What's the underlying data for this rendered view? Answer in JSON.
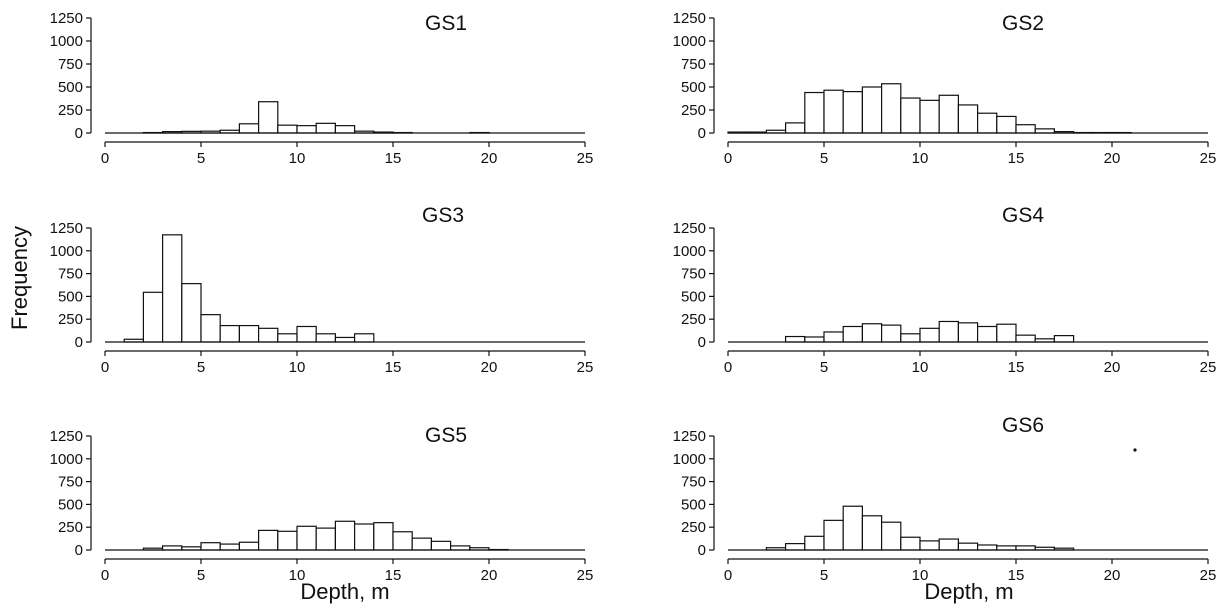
{
  "figure": {
    "ylabel": "Frequency",
    "xlabel": "Depth, m"
  },
  "chart_data": [
    {
      "type": "bar",
      "title": "GS1",
      "xlabel": "",
      "ylabel": "",
      "xlim": [
        0,
        25
      ],
      "ylim": [
        0,
        1250
      ],
      "xticks": [
        0,
        5,
        10,
        15,
        20,
        25
      ],
      "yticks": [
        0,
        250,
        500,
        750,
        1000,
        1250
      ],
      "bin_width": 1,
      "bin_starts": [
        0,
        1,
        2,
        3,
        4,
        5,
        6,
        7,
        8,
        9,
        10,
        11,
        12,
        13,
        14,
        15,
        16,
        17,
        18,
        19,
        20,
        21,
        22,
        23,
        24
      ],
      "values": [
        0,
        0,
        5,
        15,
        18,
        20,
        30,
        100,
        340,
        85,
        80,
        105,
        80,
        20,
        10,
        5,
        0,
        0,
        0,
        5,
        0,
        0,
        0,
        0,
        0
      ]
    },
    {
      "type": "bar",
      "title": "GS2",
      "xlabel": "",
      "ylabel": "",
      "xlim": [
        0,
        25
      ],
      "ylim": [
        0,
        1250
      ],
      "xticks": [
        0,
        5,
        10,
        15,
        20,
        25
      ],
      "yticks": [
        0,
        250,
        500,
        750,
        1000,
        1250
      ],
      "bin_width": 1,
      "bin_starts": [
        0,
        1,
        2,
        3,
        4,
        5,
        6,
        7,
        8,
        9,
        10,
        11,
        12,
        13,
        14,
        15,
        16,
        17,
        18,
        19,
        20,
        21,
        22,
        23,
        24
      ],
      "values": [
        10,
        10,
        30,
        110,
        440,
        465,
        450,
        500,
        535,
        380,
        355,
        410,
        305,
        215,
        180,
        90,
        45,
        15,
        5,
        5,
        5,
        0,
        0,
        0,
        0
      ]
    },
    {
      "type": "bar",
      "title": "GS3",
      "xlabel": "",
      "ylabel": "",
      "xlim": [
        0,
        25
      ],
      "ylim": [
        0,
        1250
      ],
      "xticks": [
        0,
        5,
        10,
        15,
        20,
        25
      ],
      "yticks": [
        0,
        250,
        500,
        750,
        1000,
        1250
      ],
      "bin_width": 1,
      "bin_starts": [
        0,
        1,
        2,
        3,
        4,
        5,
        6,
        7,
        8,
        9,
        10,
        11,
        12,
        13,
        14,
        15,
        16,
        17,
        18,
        19,
        20,
        21,
        22,
        23,
        24
      ],
      "values": [
        0,
        30,
        545,
        1175,
        640,
        300,
        180,
        180,
        150,
        90,
        170,
        90,
        50,
        90,
        0,
        0,
        0,
        0,
        0,
        0,
        0,
        0,
        0,
        0,
        0
      ]
    },
    {
      "type": "bar",
      "title": "GS4",
      "xlabel": "",
      "ylabel": "",
      "xlim": [
        0,
        25
      ],
      "ylim": [
        0,
        1250
      ],
      "xticks": [
        0,
        5,
        10,
        15,
        20,
        25
      ],
      "yticks": [
        0,
        250,
        500,
        750,
        1000,
        1250
      ],
      "bin_width": 1,
      "bin_starts": [
        0,
        1,
        2,
        3,
        4,
        5,
        6,
        7,
        8,
        9,
        10,
        11,
        12,
        13,
        14,
        15,
        16,
        17,
        18,
        19,
        20,
        21,
        22,
        23,
        24
      ],
      "values": [
        0,
        0,
        0,
        60,
        55,
        110,
        170,
        200,
        185,
        90,
        150,
        225,
        210,
        170,
        195,
        75,
        35,
        70,
        0,
        0,
        0,
        0,
        0,
        0,
        0
      ]
    },
    {
      "type": "bar",
      "title": "GS5",
      "xlabel": "",
      "ylabel": "",
      "xlim": [
        0,
        25
      ],
      "ylim": [
        0,
        1250
      ],
      "xticks": [
        0,
        5,
        10,
        15,
        20,
        25
      ],
      "yticks": [
        0,
        250,
        500,
        750,
        1000,
        1250
      ],
      "bin_width": 1,
      "bin_starts": [
        0,
        1,
        2,
        3,
        4,
        5,
        6,
        7,
        8,
        9,
        10,
        11,
        12,
        13,
        14,
        15,
        16,
        17,
        18,
        19,
        20,
        21,
        22,
        23,
        24
      ],
      "values": [
        0,
        0,
        20,
        45,
        35,
        80,
        65,
        85,
        215,
        205,
        260,
        240,
        315,
        285,
        300,
        200,
        130,
        95,
        45,
        25,
        5,
        0,
        0,
        0,
        0
      ]
    },
    {
      "type": "bar",
      "title": "GS6",
      "xlabel": "",
      "ylabel": "",
      "xlim": [
        0,
        25
      ],
      "ylim": [
        0,
        1250
      ],
      "xticks": [
        0,
        5,
        10,
        15,
        20,
        25
      ],
      "yticks": [
        0,
        250,
        500,
        750,
        1000,
        1250
      ],
      "bin_width": 1,
      "bin_starts": [
        0,
        1,
        2,
        3,
        4,
        5,
        6,
        7,
        8,
        9,
        10,
        11,
        12,
        13,
        14,
        15,
        16,
        17,
        18,
        19,
        20,
        21,
        22,
        23,
        24
      ],
      "values": [
        0,
        0,
        25,
        70,
        150,
        325,
        480,
        375,
        305,
        140,
        100,
        120,
        75,
        55,
        45,
        45,
        30,
        20,
        0,
        0,
        0,
        0,
        0,
        0,
        0
      ]
    }
  ]
}
